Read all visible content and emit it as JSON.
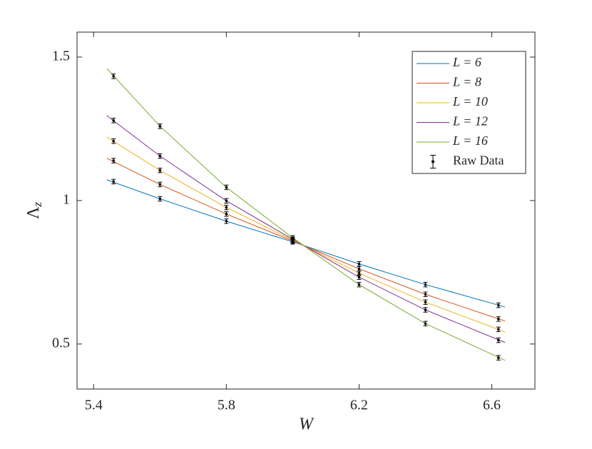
{
  "chart_data": {
    "type": "line",
    "xlabel": "W",
    "ylabel": {
      "symbol": "Λ",
      "subscript": "z"
    },
    "x": [
      5.44,
      5.6,
      5.8,
      6.0,
      6.2,
      6.4,
      6.64
    ],
    "series": [
      {
        "name": "L = 6",
        "color": "#0072BD",
        "values": [
          1.072,
          1.006,
          0.928,
          0.856,
          0.779,
          0.707,
          0.629
        ]
      },
      {
        "name": "L = 8",
        "color": "#D95319",
        "values": [
          1.147,
          1.056,
          0.953,
          0.859,
          0.762,
          0.673,
          0.58
        ]
      },
      {
        "name": "L = 10",
        "color": "#EDB120",
        "values": [
          1.221,
          1.105,
          0.976,
          0.862,
          0.747,
          0.646,
          0.542
        ]
      },
      {
        "name": "L = 12",
        "color": "#7E2F8E",
        "values": [
          1.296,
          1.155,
          0.999,
          0.865,
          0.733,
          0.619,
          0.505
        ]
      },
      {
        "name": "L = 16",
        "color": "#77AC30",
        "values": [
          1.46,
          1.259,
          1.046,
          0.87,
          0.707,
          0.571,
          0.443
        ]
      }
    ],
    "raw_data": {
      "name": "Raw Data",
      "color": "#000000",
      "error": 0.008,
      "x": [
        5.46,
        5.6,
        5.8,
        6.0,
        6.2,
        6.4,
        6.62
      ],
      "values": [
        [
          1.066,
          1.006,
          0.928,
          0.856,
          0.779,
          0.707,
          0.635
        ],
        [
          1.139,
          1.056,
          0.953,
          0.859,
          0.762,
          0.673,
          0.587
        ],
        [
          1.207,
          1.105,
          0.976,
          0.862,
          0.747,
          0.646,
          0.551
        ],
        [
          1.279,
          1.155,
          0.999,
          0.865,
          0.733,
          0.619,
          0.513
        ],
        [
          1.433,
          1.259,
          1.046,
          0.87,
          0.707,
          0.571,
          0.452
        ]
      ]
    },
    "xlim": [
      5.35,
      6.73
    ],
    "ylim": [
      0.343,
      1.587
    ],
    "xticks": [
      5.4,
      5.8,
      6.2,
      6.6
    ],
    "yticks": [
      0.5,
      1,
      1.5
    ],
    "legend": "top-right",
    "grid": false
  }
}
